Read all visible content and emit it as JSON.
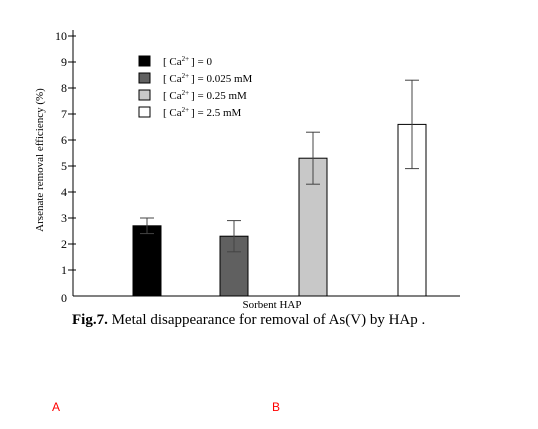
{
  "chart_data": {
    "type": "bar",
    "xlabel": "Sorbent HAP",
    "ylabel": "Arsenate removal efficiency (%)",
    "yticks": [
      "0",
      "1",
      "2",
      "3",
      "4",
      "5",
      "6",
      "7",
      "8",
      "9",
      "10"
    ],
    "ylim": [
      0,
      10
    ],
    "grid": false,
    "legend_position": "top-left",
    "series": [
      {
        "name": "[ Ca2+ ] = 0",
        "legend": {
          "pre": "[ Ca",
          "sup": "2+",
          "post": "] = 0"
        },
        "value": 2.7,
        "error": 0.3,
        "color": "#000000"
      },
      {
        "name": "[ Ca2+ ] = 0.025 mM",
        "legend": {
          "pre": "[ Ca",
          "sup": "2+",
          "post": "] = 0.025 mM"
        },
        "value": 2.3,
        "error": 0.6,
        "color": "#606060"
      },
      {
        "name": "[ Ca2+ ] = 0.25 mM",
        "legend": {
          "pre": "[ Ca",
          "sup": "2+",
          "post": "] = 0.25 mM"
        },
        "value": 5.3,
        "error": 1.0,
        "color": "#c8c8c8"
      },
      {
        "name": "[ Ca2+ ] = 2.5 mM",
        "legend": {
          "pre": "[ Ca",
          "sup": "2+",
          "post": "] = 2.5 mM"
        },
        "value": 6.6,
        "error": 1.7,
        "color": "#ffffff"
      }
    ]
  },
  "caption": {
    "label": "Fig.7.",
    "text": " Metal disappearance for removal of As(V) by HAp ."
  },
  "markers": {
    "a": "A",
    "b": "B"
  }
}
